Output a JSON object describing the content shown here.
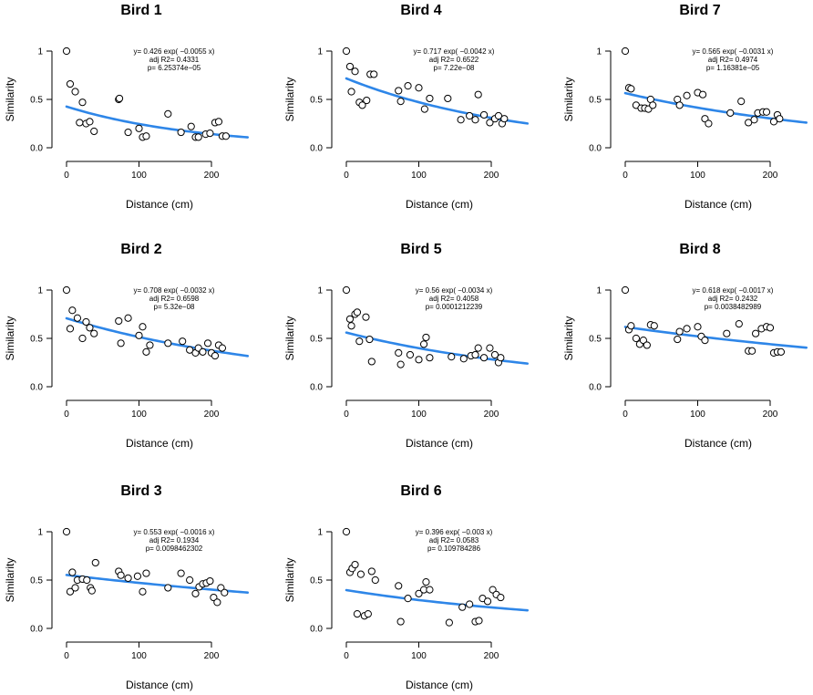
{
  "chart_data": [
    {
      "type": "scatter",
      "title": "Bird 1",
      "xlabel": "Distance (cm)",
      "ylabel": "Similarity",
      "xlim": [
        -5,
        250
      ],
      "ylim": [
        0,
        1
      ],
      "xticks": [
        0,
        100,
        200
      ],
      "yticks": [
        0,
        0.5,
        1
      ],
      "ytick_labels": [
        "0.0",
        "0.5",
        "1"
      ],
      "fit": {
        "type": "exponential",
        "a": 0.426,
        "b": -0.0055
      },
      "annotations": [
        "y= 0.426 exp( −0.0055 x)",
        "adj R2= 0.4331",
        "p= 6.25374e−05"
      ],
      "x": [
        0,
        5,
        12,
        18,
        22,
        27,
        32,
        38,
        72,
        73,
        85,
        100,
        105,
        110,
        140,
        158,
        172,
        178,
        182,
        192,
        198,
        205,
        210,
        215,
        220
      ],
      "y": [
        1.0,
        0.66,
        0.58,
        0.26,
        0.47,
        0.25,
        0.27,
        0.17,
        0.5,
        0.51,
        0.16,
        0.2,
        0.11,
        0.12,
        0.35,
        0.16,
        0.22,
        0.11,
        0.11,
        0.14,
        0.15,
        0.26,
        0.27,
        0.12,
        0.12
      ]
    },
    {
      "type": "scatter",
      "title": "Bird 4",
      "xlabel": "Distance (cm)",
      "ylabel": "Similarity",
      "xlim": [
        -5,
        250
      ],
      "ylim": [
        0,
        1
      ],
      "xticks": [
        0,
        100,
        200
      ],
      "yticks": [
        0,
        0.5,
        1
      ],
      "ytick_labels": [
        "0.0",
        "0.5",
        "1"
      ],
      "fit": {
        "type": "exponential",
        "a": 0.717,
        "b": -0.0042
      },
      "annotations": [
        "y= 0.717 exp( −0.0042 x)",
        "adj R2= 0.6522",
        "p= 7.22e−08"
      ],
      "x": [
        0,
        5,
        7,
        12,
        18,
        22,
        28,
        33,
        38,
        72,
        75,
        85,
        100,
        108,
        115,
        140,
        158,
        170,
        178,
        182,
        190,
        198,
        205,
        210,
        215,
        218
      ],
      "y": [
        1.0,
        0.84,
        0.58,
        0.79,
        0.47,
        0.44,
        0.49,
        0.76,
        0.76,
        0.59,
        0.48,
        0.64,
        0.62,
        0.4,
        0.51,
        0.51,
        0.29,
        0.33,
        0.29,
        0.55,
        0.34,
        0.26,
        0.3,
        0.33,
        0.25,
        0.3
      ]
    },
    {
      "type": "scatter",
      "title": "Bird 7",
      "xlabel": "Distance (cm)",
      "ylabel": "Similarity",
      "xlim": [
        -5,
        250
      ],
      "ylim": [
        0,
        1
      ],
      "xticks": [
        0,
        100,
        200
      ],
      "yticks": [
        0,
        0.5,
        1
      ],
      "ytick_labels": [
        "0.0",
        "0.5",
        "1"
      ],
      "fit": {
        "type": "exponential",
        "a": 0.565,
        "b": -0.0031
      },
      "annotations": [
        "y= 0.565 exp( −0.0031 x)",
        "adj R2= 0.4974",
        "p= 1.16381e−05"
      ],
      "x": [
        0,
        5,
        8,
        15,
        22,
        27,
        32,
        35,
        38,
        72,
        75,
        85,
        100,
        107,
        110,
        115,
        145,
        160,
        170,
        178,
        183,
        190,
        195,
        205,
        210,
        213
      ],
      "y": [
        1.0,
        0.62,
        0.61,
        0.44,
        0.41,
        0.41,
        0.4,
        0.5,
        0.44,
        0.5,
        0.44,
        0.54,
        0.57,
        0.55,
        0.3,
        0.25,
        0.36,
        0.48,
        0.26,
        0.29,
        0.36,
        0.37,
        0.37,
        0.27,
        0.34,
        0.3
      ]
    },
    {
      "type": "scatter",
      "title": "Bird 2",
      "xlabel": "Distance (cm)",
      "ylabel": "Similarity",
      "xlim": [
        -5,
        250
      ],
      "ylim": [
        0,
        1
      ],
      "xticks": [
        0,
        100,
        200
      ],
      "yticks": [
        0,
        0.5,
        1
      ],
      "ytick_labels": [
        "0.0",
        "0.5",
        "1"
      ],
      "fit": {
        "type": "exponential",
        "a": 0.708,
        "b": -0.0032
      },
      "annotations": [
        "y= 0.708 exp( −0.0032 x)",
        "adj R2= 0.6598",
        "p= 5.32e−08"
      ],
      "x": [
        0,
        5,
        8,
        15,
        22,
        27,
        32,
        38,
        72,
        75,
        85,
        100,
        105,
        110,
        115,
        140,
        160,
        170,
        178,
        182,
        188,
        195,
        200,
        205,
        210,
        215
      ],
      "y": [
        1.0,
        0.6,
        0.79,
        0.71,
        0.5,
        0.67,
        0.61,
        0.55,
        0.68,
        0.45,
        0.71,
        0.53,
        0.62,
        0.36,
        0.43,
        0.45,
        0.47,
        0.38,
        0.35,
        0.4,
        0.36,
        0.45,
        0.35,
        0.32,
        0.43,
        0.4
      ]
    },
    {
      "type": "scatter",
      "title": "Bird 5",
      "xlabel": "Distance (cm)",
      "ylabel": "Similarity",
      "xlim": [
        -5,
        250
      ],
      "ylim": [
        0,
        1
      ],
      "xticks": [
        0,
        100,
        200
      ],
      "yticks": [
        0,
        0.5,
        1
      ],
      "ytick_labels": [
        "0.0",
        "0.5",
        "1"
      ],
      "fit": {
        "type": "exponential",
        "a": 0.56,
        "b": -0.0034
      },
      "annotations": [
        "y= 0.56 exp( −0.0034 x)",
        "adj R2= 0.4058",
        "p= 0.0001212239"
      ],
      "x": [
        0,
        5,
        7,
        12,
        15,
        18,
        27,
        32,
        35,
        72,
        75,
        88,
        100,
        107,
        110,
        115,
        145,
        162,
        172,
        178,
        182,
        190,
        198,
        205,
        210,
        213
      ],
      "y": [
        1.0,
        0.7,
        0.63,
        0.75,
        0.77,
        0.47,
        0.72,
        0.49,
        0.26,
        0.35,
        0.23,
        0.33,
        0.28,
        0.44,
        0.51,
        0.3,
        0.31,
        0.29,
        0.32,
        0.33,
        0.4,
        0.3,
        0.4,
        0.33,
        0.25,
        0.3
      ]
    },
    {
      "type": "scatter",
      "title": "Bird 8",
      "xlabel": "Distance (cm)",
      "ylabel": "Similarity",
      "xlim": [
        -5,
        250
      ],
      "ylim": [
        0,
        1
      ],
      "xticks": [
        0,
        100,
        200
      ],
      "yticks": [
        0,
        0.5,
        1
      ],
      "ytick_labels": [
        "0.0",
        "0.5",
        "1"
      ],
      "fit": {
        "type": "exponential",
        "a": 0.618,
        "b": -0.0017
      },
      "annotations": [
        "y= 0.618 exp( −0.0017 x)",
        "adj R2= 0.2432",
        "p= 0.0038482989"
      ],
      "x": [
        0,
        5,
        8,
        15,
        20,
        25,
        30,
        35,
        40,
        72,
        75,
        85,
        100,
        105,
        110,
        140,
        157,
        170,
        175,
        180,
        188,
        195,
        200,
        205,
        210,
        215
      ],
      "y": [
        1.0,
        0.59,
        0.63,
        0.5,
        0.44,
        0.48,
        0.43,
        0.64,
        0.63,
        0.49,
        0.57,
        0.6,
        0.62,
        0.52,
        0.48,
        0.55,
        0.65,
        0.37,
        0.37,
        0.55,
        0.6,
        0.62,
        0.61,
        0.35,
        0.36,
        0.36
      ]
    },
    {
      "type": "scatter",
      "title": "Bird 3",
      "xlabel": "Distance (cm)",
      "ylabel": "Similarity",
      "xlim": [
        -5,
        250
      ],
      "ylim": [
        0,
        1
      ],
      "xticks": [
        0,
        100,
        200
      ],
      "yticks": [
        0,
        0.5,
        1
      ],
      "ytick_labels": [
        "0.0",
        "0.5",
        "1"
      ],
      "fit": {
        "type": "exponential",
        "a": 0.553,
        "b": -0.0016
      },
      "annotations": [
        "y= 0.553 exp( −0.0016 x)",
        "adj R2= 0.1934",
        "p= 0.0098462302"
      ],
      "x": [
        0,
        5,
        8,
        12,
        15,
        22,
        28,
        33,
        35,
        40,
        72,
        75,
        85,
        98,
        105,
        110,
        140,
        158,
        170,
        178,
        183,
        188,
        193,
        198,
        203,
        208,
        213,
        218
      ],
      "y": [
        1.0,
        0.38,
        0.58,
        0.42,
        0.5,
        0.51,
        0.5,
        0.42,
        0.39,
        0.68,
        0.59,
        0.55,
        0.52,
        0.54,
        0.38,
        0.57,
        0.42,
        0.57,
        0.5,
        0.36,
        0.43,
        0.46,
        0.47,
        0.49,
        0.32,
        0.27,
        0.42,
        0.37
      ]
    },
    {
      "type": "scatter",
      "title": "Bird 6",
      "xlabel": "Distance (cm)",
      "ylabel": "Similarity",
      "xlim": [
        -5,
        250
      ],
      "ylim": [
        0,
        1
      ],
      "xticks": [
        0,
        100,
        200
      ],
      "yticks": [
        0,
        0.5,
        1
      ],
      "ytick_labels": [
        "0.0",
        "0.5",
        "1"
      ],
      "fit": {
        "type": "exponential",
        "a": 0.396,
        "b": -0.003
      },
      "annotations": [
        "y= 0.396 exp( −0.003 x)",
        "adj R2= 0.0583",
        "p= 0.109784286"
      ],
      "x": [
        0,
        5,
        8,
        12,
        15,
        20,
        25,
        30,
        35,
        40,
        72,
        75,
        85,
        100,
        107,
        110,
        115,
        142,
        160,
        170,
        178,
        183,
        188,
        195,
        202,
        207,
        213
      ],
      "y": [
        1.0,
        0.58,
        0.62,
        0.66,
        0.15,
        0.56,
        0.13,
        0.15,
        0.59,
        0.5,
        0.44,
        0.07,
        0.31,
        0.36,
        0.4,
        0.48,
        0.4,
        0.06,
        0.22,
        0.25,
        0.07,
        0.08,
        0.31,
        0.28,
        0.4,
        0.35,
        0.32
      ]
    }
  ]
}
